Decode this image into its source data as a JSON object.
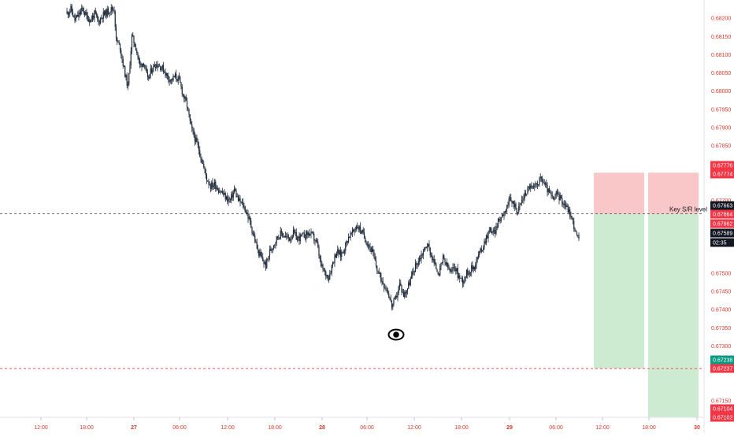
{
  "chart_data": {
    "type": "candlestick",
    "instrument_view": "price chart",
    "y_axis": {
      "ylim": [
        0.67102,
        0.6822
      ],
      "ticks": [
        "0.68200",
        "0.68150",
        "0.68100",
        "0.68050",
        "0.68000",
        "0.67950",
        "0.67900",
        "0.67850",
        "0.67800",
        "0.67700",
        "0.67500",
        "0.67450",
        "0.67400",
        "0.67350",
        "0.67300",
        "0.67150"
      ],
      "badges": [
        {
          "value": "0.67776",
          "color": "#f23645"
        },
        {
          "value": "0.67774",
          "color": "#f23645"
        },
        {
          "value": "0.67663",
          "color": "#131722"
        },
        {
          "value": "0.67664",
          "color": "#f23645"
        },
        {
          "value": "0.67662",
          "color": "#f23645"
        },
        {
          "value": "0.67589",
          "color": "#131722"
        },
        {
          "value": "02:35",
          "color": "#131722"
        },
        {
          "value": "0.67238",
          "color": "#089981"
        },
        {
          "value": "0.67237",
          "color": "#f23645"
        },
        {
          "value": "0.67104",
          "color": "#f23645"
        },
        {
          "value": "0.67102",
          "color": "#f23645"
        }
      ]
    },
    "x_axis": {
      "ticks": [
        "12:00",
        "18:00",
        "27",
        "06:00",
        "12:00",
        "18:00",
        "28",
        "06:00",
        "12:00",
        "18:00",
        "29",
        "06:00",
        "12:00",
        "18:00",
        "30"
      ]
    },
    "close_path": [
      [
        0,
        0.68215
      ],
      [
        4,
        0.68225
      ],
      [
        8,
        0.68195
      ],
      [
        12,
        0.6821
      ],
      [
        16,
        0.68225
      ],
      [
        20,
        0.68205
      ],
      [
        24,
        0.68195
      ],
      [
        28,
        0.68212
      ],
      [
        32,
        0.6819
      ],
      [
        36,
        0.68208
      ],
      [
        40,
        0.68215
      ],
      [
        44,
        0.68225
      ],
      [
        48,
        0.68225
      ],
      [
        50,
        0.6814
      ],
      [
        54,
        0.6812
      ],
      [
        58,
        0.6806
      ],
      [
        62,
        0.6801
      ],
      [
        66,
        0.6815
      ],
      [
        70,
        0.6812
      ],
      [
        74,
        0.6807
      ],
      [
        78,
        0.6808
      ],
      [
        82,
        0.6803
      ],
      [
        86,
        0.6806
      ],
      [
        90,
        0.68075
      ],
      [
        94,
        0.6807
      ],
      [
        98,
        0.6806
      ],
      [
        102,
        0.6804
      ],
      [
        106,
        0.6803
      ],
      [
        110,
        0.6804
      ],
      [
        114,
        0.6803
      ],
      [
        118,
        0.6799
      ],
      [
        122,
        0.6796
      ],
      [
        126,
        0.679
      ],
      [
        130,
        0.6787
      ],
      [
        134,
        0.6784
      ],
      [
        138,
        0.678
      ],
      [
        142,
        0.6776
      ],
      [
        146,
        0.6774
      ],
      [
        150,
        0.67745
      ],
      [
        154,
        0.6773
      ],
      [
        158,
        0.6772
      ],
      [
        162,
        0.67705
      ],
      [
        166,
        0.677
      ],
      [
        170,
        0.6773
      ],
      [
        174,
        0.677
      ],
      [
        178,
        0.6769
      ],
      [
        182,
        0.6767
      ],
      [
        186,
        0.6764
      ],
      [
        190,
        0.676
      ],
      [
        194,
        0.6756
      ],
      [
        198,
        0.6754
      ],
      [
        202,
        0.6752
      ],
      [
        206,
        0.6756
      ],
      [
        210,
        0.6758
      ],
      [
        214,
        0.676
      ],
      [
        218,
        0.6761
      ],
      [
        222,
        0.676
      ],
      [
        226,
        0.67595
      ],
      [
        230,
        0.6761
      ],
      [
        234,
        0.67595
      ],
      [
        238,
        0.676
      ],
      [
        242,
        0.67605
      ],
      [
        246,
        0.6761
      ],
      [
        250,
        0.676
      ],
      [
        254,
        0.6758
      ],
      [
        258,
        0.6752
      ],
      [
        262,
        0.675
      ],
      [
        266,
        0.6749
      ],
      [
        270,
        0.6753
      ],
      [
        274,
        0.6756
      ],
      [
        278,
        0.6755
      ],
      [
        282,
        0.6757
      ],
      [
        286,
        0.676
      ],
      [
        290,
        0.6761
      ],
      [
        294,
        0.6763
      ],
      [
        298,
        0.6762
      ],
      [
        302,
        0.676
      ],
      [
        306,
        0.6758
      ],
      [
        310,
        0.6756
      ],
      [
        314,
        0.6752
      ],
      [
        318,
        0.6749
      ],
      [
        322,
        0.6747
      ],
      [
        326,
        0.6745
      ],
      [
        330,
        0.6741
      ],
      [
        334,
        0.6743
      ],
      [
        338,
        0.6747
      ],
      [
        342,
        0.6744
      ],
      [
        346,
        0.6746
      ],
      [
        350,
        0.6749
      ],
      [
        354,
        0.6752
      ],
      [
        358,
        0.6754
      ],
      [
        362,
        0.6756
      ],
      [
        366,
        0.6758
      ],
      [
        370,
        0.6755
      ],
      [
        374,
        0.6752
      ],
      [
        378,
        0.675
      ],
      [
        382,
        0.6754
      ],
      [
        386,
        0.6752
      ],
      [
        390,
        0.675
      ],
      [
        394,
        0.6752
      ],
      [
        398,
        0.6749
      ],
      [
        402,
        0.6748
      ],
      [
        406,
        0.675
      ],
      [
        410,
        0.6751
      ],
      [
        414,
        0.6752
      ],
      [
        418,
        0.6755
      ],
      [
        422,
        0.6757
      ],
      [
        426,
        0.676
      ],
      [
        430,
        0.6762
      ],
      [
        434,
        0.6761
      ],
      [
        438,
        0.6764
      ],
      [
        442,
        0.6766
      ],
      [
        446,
        0.6768
      ],
      [
        450,
        0.677
      ],
      [
        454,
        0.6769
      ],
      [
        458,
        0.6767
      ],
      [
        462,
        0.677
      ],
      [
        466,
        0.6772
      ],
      [
        470,
        0.6774
      ],
      [
        474,
        0.6773
      ],
      [
        478,
        0.6775
      ],
      [
        482,
        0.6776
      ],
      [
        486,
        0.6774
      ],
      [
        490,
        0.6772
      ],
      [
        494,
        0.677
      ],
      [
        498,
        0.6772
      ],
      [
        502,
        0.677
      ],
      [
        506,
        0.6769
      ],
      [
        510,
        0.6767
      ],
      [
        514,
        0.6764
      ],
      [
        518,
        0.676
      ],
      [
        520,
        0.67595
      ]
    ],
    "levels": [
      {
        "name": "key-level",
        "value": 0.67663,
        "style": "dashed",
        "color": "#555555",
        "label": "Key S/R level"
      },
      {
        "name": "stop-level",
        "value": 0.67238,
        "style": "dashed",
        "color": "#f23645",
        "label": ""
      },
      {
        "name": "target-level",
        "value": 0.67104,
        "style": "dashed",
        "color": "#f23645",
        "label": ""
      }
    ],
    "positions": [
      {
        "entry": 0.67663,
        "stop": 0.67776,
        "target": 0.67238
      },
      {
        "entry": 0.67663,
        "stop": 0.67776,
        "target": 0.67104
      }
    ],
    "colors": {
      "candle": "#1e2a3a",
      "risk_zone": "#f9c7c7",
      "reward_zone": "#cdebd0"
    },
    "icons": [
      "eye-icon"
    ]
  }
}
